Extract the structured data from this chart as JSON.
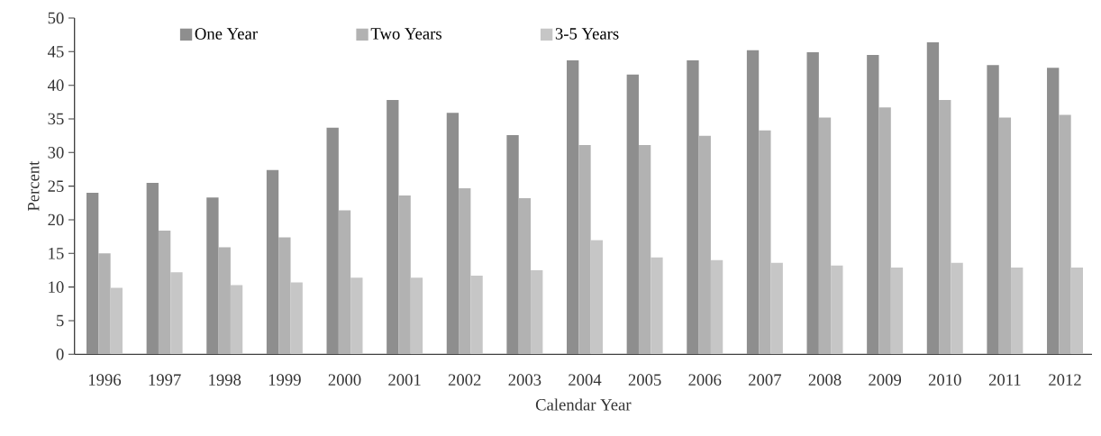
{
  "chart_data": {
    "type": "bar",
    "xlabel": "Calendar Year",
    "ylabel": "Percent",
    "categories": [
      "1996",
      "1997",
      "1998",
      "1999",
      "2000",
      "2001",
      "2002",
      "2003",
      "2004",
      "2005",
      "2006",
      "2007",
      "2008",
      "2009",
      "2010",
      "2011",
      "2012"
    ],
    "series": [
      {
        "name": "One Year",
        "color": "#8e8e8e",
        "values": [
          24.0,
          25.5,
          23.3,
          27.4,
          33.7,
          37.8,
          35.9,
          32.6,
          43.7,
          41.6,
          43.7,
          45.2,
          44.9,
          44.5,
          46.4,
          43.0,
          42.6
        ]
      },
      {
        "name": "Two Years",
        "color": "#b2b2b2",
        "values": [
          15.0,
          18.4,
          15.9,
          17.4,
          21.4,
          23.6,
          24.7,
          23.2,
          31.1,
          31.1,
          32.5,
          33.3,
          35.2,
          36.7,
          37.8,
          35.2,
          35.6
        ]
      },
      {
        "name": "3-5 Years",
        "color": "#c6c6c6",
        "values": [
          9.9,
          12.2,
          10.3,
          10.7,
          11.4,
          11.4,
          11.7,
          12.5,
          17.0,
          14.4,
          14.0,
          13.6,
          13.2,
          12.9,
          13.6,
          12.9,
          12.9
        ]
      }
    ],
    "ylim": [
      0,
      50
    ],
    "yticks": [
      0,
      5,
      10,
      15,
      20,
      25,
      30,
      35,
      40,
      45,
      50
    ],
    "grid": false,
    "legend": "top left"
  }
}
